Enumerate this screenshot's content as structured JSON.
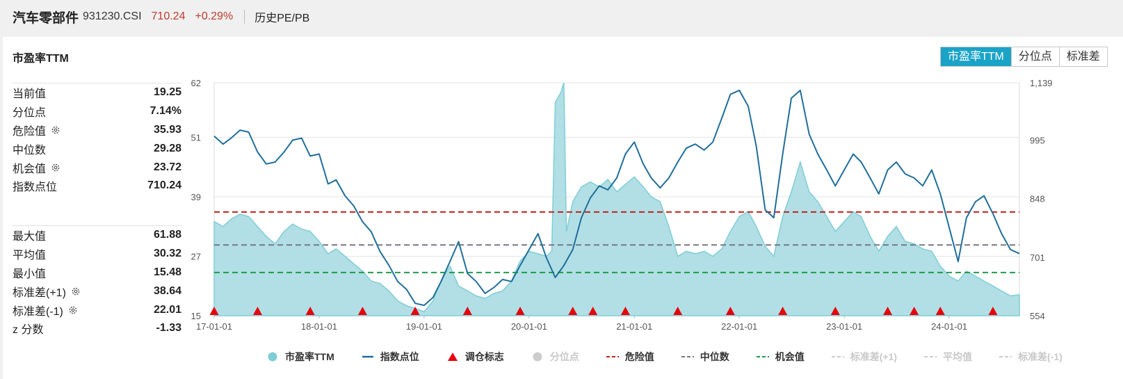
{
  "header": {
    "title": "汽车零部件",
    "code": "931230.CSI",
    "price": "710.24",
    "change": "+0.29%",
    "history_link": "历史PE/PB"
  },
  "panel": {
    "title": "市盈率TTM",
    "tabs": [
      {
        "label": "市盈率TTM",
        "active": true
      },
      {
        "label": "分位点",
        "active": false
      },
      {
        "label": "标准差",
        "active": false
      }
    ]
  },
  "stats_top": [
    {
      "label": "当前值",
      "value": "19.25",
      "gear": false
    },
    {
      "label": "分位点",
      "value": "7.14%",
      "gear": false
    },
    {
      "label": "危险值",
      "value": "35.93",
      "gear": true
    },
    {
      "label": "中位数",
      "value": "29.28",
      "gear": false
    },
    {
      "label": "机会值",
      "value": "23.72",
      "gear": true
    },
    {
      "label": "指数点位",
      "value": "710.24",
      "gear": false
    }
  ],
  "stats_bottom": [
    {
      "label": "最大值",
      "value": "61.88",
      "gear": false
    },
    {
      "label": "平均值",
      "value": "30.32",
      "gear": false
    },
    {
      "label": "最小值",
      "value": "15.48",
      "gear": false
    },
    {
      "label": "标准差(+1)",
      "value": "38.64",
      "gear": true
    },
    {
      "label": "标准差(-1)",
      "value": "22.01",
      "gear": true
    },
    {
      "label": "z 分数",
      "value": "-1.33",
      "gear": false
    }
  ],
  "legend": [
    {
      "label": "市盈率TTM",
      "kind": "dot",
      "color": "#7fcdd6",
      "active": true
    },
    {
      "label": "指数点位",
      "kind": "line",
      "color": "#1f6e99",
      "active": true
    },
    {
      "label": "调仓标志",
      "kind": "triangle",
      "color": "#e8000b",
      "active": true
    },
    {
      "label": "分位点",
      "kind": "dot",
      "color": "#cccccc",
      "active": false
    },
    {
      "label": "危险值",
      "kind": "dash",
      "color": "#c0201b",
      "active": true
    },
    {
      "label": "中位数",
      "kind": "dash",
      "color": "#777788",
      "active": true
    },
    {
      "label": "机会值",
      "kind": "dash",
      "color": "#1e9b4a",
      "active": true
    },
    {
      "label": "标准差(+1)",
      "kind": "dash",
      "color": "#cccccc",
      "active": false
    },
    {
      "label": "平均值",
      "kind": "dash",
      "color": "#cccccc",
      "active": false
    },
    {
      "label": "标准差(-1)",
      "kind": "dash",
      "color": "#cccccc",
      "active": false
    }
  ],
  "chart_data": {
    "type": "area",
    "x_ticks": [
      "17-01-01",
      "18-01-01",
      "19-01-01",
      "20-01-01",
      "21-01-01",
      "22-01-01",
      "23-01-01",
      "24-01-01"
    ],
    "x_range": [
      "2017-01-01",
      "2024-09-01"
    ],
    "y_left_ticks": [
      "62",
      "51",
      "39",
      "27",
      "15"
    ],
    "y_left_range": [
      15,
      62
    ],
    "y_right_ticks": [
      "1,139",
      "995",
      "848",
      "701",
      "554"
    ],
    "y_right_range": [
      554,
      1139
    ],
    "reference_lines": {
      "danger": 35.93,
      "median": 29.28,
      "opportunity": 23.72
    },
    "colors": {
      "pe_fill": "#a8dbe2",
      "pe_stroke": "#7fcdd6",
      "index_line": "#1f6e99",
      "danger": "#c0201b",
      "median": "#777788",
      "opportunity": "#1e9b4a",
      "marker": "#e8000b"
    },
    "series": [
      {
        "name": "市盈率TTM",
        "points": [
          [
            "2017-01-01",
            34
          ],
          [
            "2017-02-01",
            33
          ],
          [
            "2017-03-01",
            34.5
          ],
          [
            "2017-04-01",
            35.5
          ],
          [
            "2017-05-01",
            35
          ],
          [
            "2017-06-01",
            33
          ],
          [
            "2017-07-01",
            31
          ],
          [
            "2017-08-01",
            29.5
          ],
          [
            "2017-09-01",
            32
          ],
          [
            "2017-10-01",
            33.5
          ],
          [
            "2017-11-01",
            32.5
          ],
          [
            "2017-12-01",
            32
          ],
          [
            "2018-01-01",
            30
          ],
          [
            "2018-02-01",
            27.5
          ],
          [
            "2018-03-01",
            28.5
          ],
          [
            "2018-04-01",
            27
          ],
          [
            "2018-05-01",
            25.5
          ],
          [
            "2018-06-01",
            24
          ],
          [
            "2018-07-01",
            22
          ],
          [
            "2018-08-01",
            21.5
          ],
          [
            "2018-09-01",
            20
          ],
          [
            "2018-10-01",
            18
          ],
          [
            "2018-11-01",
            17
          ],
          [
            "2018-12-01",
            16.5
          ],
          [
            "2019-01-01",
            15.8
          ],
          [
            "2019-02-01",
            18
          ],
          [
            "2019-03-01",
            22
          ],
          [
            "2019-04-01",
            25
          ],
          [
            "2019-05-01",
            21
          ],
          [
            "2019-06-01",
            20
          ],
          [
            "2019-07-01",
            19
          ],
          [
            "2019-08-01",
            18.5
          ],
          [
            "2019-09-01",
            19.5
          ],
          [
            "2019-10-01",
            20
          ],
          [
            "2019-11-01",
            22
          ],
          [
            "2019-12-01",
            26
          ],
          [
            "2020-01-01",
            28
          ],
          [
            "2020-02-01",
            27.5
          ],
          [
            "2020-03-01",
            27
          ],
          [
            "2020-03-20",
            28
          ],
          [
            "2020-04-01",
            58
          ],
          [
            "2020-04-20",
            60
          ],
          [
            "2020-05-01",
            62
          ],
          [
            "2020-05-10",
            32
          ],
          [
            "2020-06-01",
            38
          ],
          [
            "2020-07-01",
            41
          ],
          [
            "2020-08-01",
            42
          ],
          [
            "2020-09-01",
            41
          ],
          [
            "2020-10-01",
            42.5
          ],
          [
            "2020-11-01",
            40
          ],
          [
            "2020-12-01",
            41.5
          ],
          [
            "2021-01-01",
            43
          ],
          [
            "2021-02-01",
            41
          ],
          [
            "2021-03-01",
            39
          ],
          [
            "2021-04-01",
            38
          ],
          [
            "2021-05-01",
            33
          ],
          [
            "2021-06-01",
            27
          ],
          [
            "2021-07-01",
            28
          ],
          [
            "2021-08-01",
            27.5
          ],
          [
            "2021-09-01",
            28
          ],
          [
            "2021-10-01",
            27
          ],
          [
            "2021-11-01",
            28.5
          ],
          [
            "2021-12-01",
            32
          ],
          [
            "2022-01-01",
            35
          ],
          [
            "2022-02-01",
            36
          ],
          [
            "2022-03-01",
            33
          ],
          [
            "2022-04-01",
            29
          ],
          [
            "2022-05-01",
            27
          ],
          [
            "2022-06-01",
            35
          ],
          [
            "2022-07-01",
            40
          ],
          [
            "2022-08-01",
            46
          ],
          [
            "2022-09-01",
            40
          ],
          [
            "2022-10-01",
            38
          ],
          [
            "2022-11-01",
            35
          ],
          [
            "2022-12-01",
            32
          ],
          [
            "2023-01-01",
            34
          ],
          [
            "2023-02-01",
            36
          ],
          [
            "2023-03-01",
            35
          ],
          [
            "2023-04-01",
            31
          ],
          [
            "2023-05-01",
            28
          ],
          [
            "2023-06-01",
            31
          ],
          [
            "2023-07-01",
            33
          ],
          [
            "2023-08-01",
            30
          ],
          [
            "2023-09-01",
            29.5
          ],
          [
            "2023-10-01",
            28.5
          ],
          [
            "2023-11-01",
            28
          ],
          [
            "2023-12-01",
            25
          ],
          [
            "2024-01-01",
            23
          ],
          [
            "2024-02-01",
            22
          ],
          [
            "2024-03-01",
            24
          ],
          [
            "2024-04-01",
            23
          ],
          [
            "2024-05-01",
            22
          ],
          [
            "2024-06-01",
            21
          ],
          [
            "2024-07-01",
            20
          ],
          [
            "2024-08-01",
            19
          ],
          [
            "2024-09-01",
            19.25
          ]
        ]
      },
      {
        "name": "指数点位",
        "points": [
          [
            "2017-01-01",
            1005
          ],
          [
            "2017-02-01",
            985
          ],
          [
            "2017-03-01",
            1000
          ],
          [
            "2017-04-01",
            1020
          ],
          [
            "2017-05-01",
            1015
          ],
          [
            "2017-06-01",
            965
          ],
          [
            "2017-07-01",
            935
          ],
          [
            "2017-08-01",
            940
          ],
          [
            "2017-09-01",
            965
          ],
          [
            "2017-10-01",
            995
          ],
          [
            "2017-11-01",
            1000
          ],
          [
            "2017-12-01",
            955
          ],
          [
            "2018-01-01",
            960
          ],
          [
            "2018-02-01",
            885
          ],
          [
            "2018-03-01",
            895
          ],
          [
            "2018-04-01",
            855
          ],
          [
            "2018-05-01",
            830
          ],
          [
            "2018-06-01",
            790
          ],
          [
            "2018-07-01",
            765
          ],
          [
            "2018-08-01",
            715
          ],
          [
            "2018-09-01",
            680
          ],
          [
            "2018-10-01",
            640
          ],
          [
            "2018-11-01",
            620
          ],
          [
            "2018-12-01",
            585
          ],
          [
            "2019-01-01",
            580
          ],
          [
            "2019-02-01",
            600
          ],
          [
            "2019-03-01",
            640
          ],
          [
            "2019-04-01",
            690
          ],
          [
            "2019-05-01",
            740
          ],
          [
            "2019-06-01",
            660
          ],
          [
            "2019-07-01",
            640
          ],
          [
            "2019-08-01",
            610
          ],
          [
            "2019-09-01",
            625
          ],
          [
            "2019-10-01",
            645
          ],
          [
            "2019-11-01",
            640
          ],
          [
            "2019-12-01",
            680
          ],
          [
            "2020-01-01",
            720
          ],
          [
            "2020-02-01",
            760
          ],
          [
            "2020-03-01",
            700
          ],
          [
            "2020-04-01",
            650
          ],
          [
            "2020-05-01",
            680
          ],
          [
            "2020-06-01",
            720
          ],
          [
            "2020-07-01",
            800
          ],
          [
            "2020-08-01",
            850
          ],
          [
            "2020-09-01",
            880
          ],
          [
            "2020-10-01",
            870
          ],
          [
            "2020-11-01",
            900
          ],
          [
            "2020-12-01",
            960
          ],
          [
            "2021-01-01",
            990
          ],
          [
            "2021-02-01",
            935
          ],
          [
            "2021-03-01",
            900
          ],
          [
            "2021-04-01",
            875
          ],
          [
            "2021-05-01",
            900
          ],
          [
            "2021-06-01",
            940
          ],
          [
            "2021-07-01",
            975
          ],
          [
            "2021-08-01",
            985
          ],
          [
            "2021-09-01",
            970
          ],
          [
            "2021-10-01",
            990
          ],
          [
            "2021-11-01",
            1050
          ],
          [
            "2021-12-01",
            1110
          ],
          [
            "2022-01-01",
            1120
          ],
          [
            "2022-02-01",
            1080
          ],
          [
            "2022-03-01",
            980
          ],
          [
            "2022-04-01",
            820
          ],
          [
            "2022-05-01",
            800
          ],
          [
            "2022-06-01",
            960
          ],
          [
            "2022-07-01",
            1100
          ],
          [
            "2022-08-01",
            1120
          ],
          [
            "2022-09-01",
            1010
          ],
          [
            "2022-10-01",
            960
          ],
          [
            "2022-11-01",
            920
          ],
          [
            "2022-12-01",
            880
          ],
          [
            "2023-01-01",
            920
          ],
          [
            "2023-02-01",
            960
          ],
          [
            "2023-03-01",
            940
          ],
          [
            "2023-04-01",
            900
          ],
          [
            "2023-05-01",
            860
          ],
          [
            "2023-06-01",
            920
          ],
          [
            "2023-07-01",
            940
          ],
          [
            "2023-08-01",
            910
          ],
          [
            "2023-09-01",
            900
          ],
          [
            "2023-10-01",
            880
          ],
          [
            "2023-11-01",
            920
          ],
          [
            "2023-12-01",
            860
          ],
          [
            "2024-01-01",
            775
          ],
          [
            "2024-02-01",
            690
          ],
          [
            "2024-03-01",
            800
          ],
          [
            "2024-04-01",
            840
          ],
          [
            "2024-05-01",
            855
          ],
          [
            "2024-06-01",
            810
          ],
          [
            "2024-07-01",
            760
          ],
          [
            "2024-08-01",
            720
          ],
          [
            "2024-09-01",
            710
          ]
        ]
      }
    ],
    "rebalance_markers": [
      "2017-01-01",
      "2017-06-01",
      "2017-12-01",
      "2018-06-01",
      "2018-12-01",
      "2019-06-01",
      "2019-12-01",
      "2020-06-01",
      "2020-08-10",
      "2020-12-01",
      "2021-06-01",
      "2021-12-01",
      "2022-06-01",
      "2022-12-01",
      "2023-06-01",
      "2023-09-01",
      "2023-12-01",
      "2024-06-01"
    ]
  }
}
